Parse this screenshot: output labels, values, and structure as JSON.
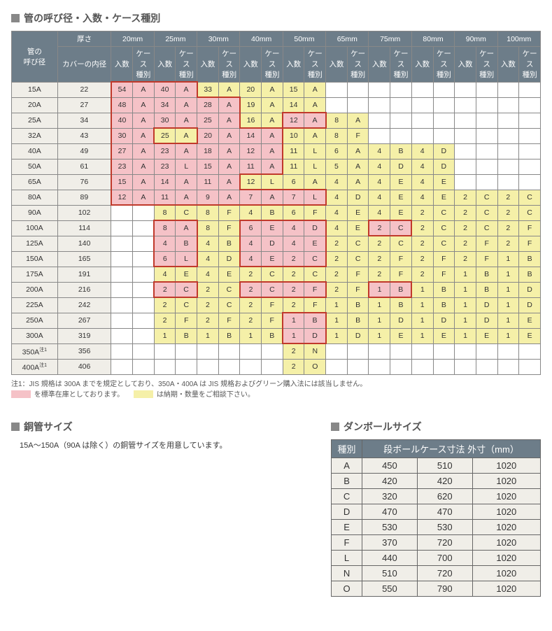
{
  "titles": {
    "main": "管の呼び径・入数・ケース種別",
    "copper": "銅管サイズ",
    "cardboard": "ダンボールサイズ"
  },
  "headers": {
    "pipe_size": "管の\n呼び径",
    "thickness": "厚さ",
    "cover_inner": "カバーの内径",
    "qty": "入数",
    "case_type": "ケース\n種別",
    "thickness_cols": [
      "20mm",
      "25mm",
      "30mm",
      "40mm",
      "50mm",
      "65mm",
      "75mm",
      "80mm",
      "90mm",
      "100mm"
    ]
  },
  "rows": [
    {
      "size": "15A",
      "inner": "22",
      "cells": [
        [
          "54",
          "A",
          "p"
        ],
        [
          "40",
          "A",
          "p"
        ],
        [
          "33",
          "A",
          "y"
        ],
        [
          "20",
          "A",
          "y"
        ],
        [
          "15",
          "A",
          "y"
        ],
        null,
        null,
        null,
        null,
        null
      ]
    },
    {
      "size": "20A",
      "inner": "27",
      "cells": [
        [
          "48",
          "A",
          "p"
        ],
        [
          "34",
          "A",
          "p"
        ],
        [
          "28",
          "A",
          "p"
        ],
        [
          "19",
          "A",
          "y"
        ],
        [
          "14",
          "A",
          "y"
        ],
        null,
        null,
        null,
        null,
        null
      ]
    },
    {
      "size": "25A",
      "inner": "34",
      "cells": [
        [
          "40",
          "A",
          "p"
        ],
        [
          "30",
          "A",
          "p"
        ],
        [
          "25",
          "A",
          "p"
        ],
        [
          "16",
          "A",
          "y"
        ],
        [
          "12",
          "A",
          "p"
        ],
        [
          "8",
          "A",
          "y"
        ],
        null,
        null,
        null,
        null
      ]
    },
    {
      "size": "32A",
      "inner": "43",
      "cells": [
        [
          "30",
          "A",
          "p"
        ],
        [
          "25",
          "A",
          "y"
        ],
        [
          "20",
          "A",
          "p"
        ],
        [
          "14",
          "A",
          "p"
        ],
        [
          "10",
          "A",
          "y"
        ],
        [
          "8",
          "F",
          "y"
        ],
        null,
        null,
        null,
        null
      ]
    },
    {
      "size": "40A",
      "inner": "49",
      "cells": [
        [
          "27",
          "A",
          "p"
        ],
        [
          "23",
          "A",
          "p"
        ],
        [
          "18",
          "A",
          "p"
        ],
        [
          "12",
          "A",
          "p"
        ],
        [
          "11",
          "L",
          "y"
        ],
        [
          "6",
          "A",
          "y"
        ],
        [
          "4",
          "B",
          "y"
        ],
        [
          "4",
          "D",
          "y"
        ],
        null,
        null
      ]
    },
    {
      "size": "50A",
      "inner": "61",
      "cells": [
        [
          "23",
          "A",
          "p"
        ],
        [
          "23",
          "L",
          "p"
        ],
        [
          "15",
          "A",
          "p"
        ],
        [
          "11",
          "A",
          "p"
        ],
        [
          "11",
          "L",
          "y"
        ],
        [
          "5",
          "A",
          "y"
        ],
        [
          "4",
          "D",
          "y"
        ],
        [
          "4",
          "D",
          "y"
        ],
        null,
        null
      ]
    },
    {
      "size": "65A",
      "inner": "76",
      "cells": [
        [
          "15",
          "A",
          "p"
        ],
        [
          "14",
          "A",
          "p"
        ],
        [
          "11",
          "A",
          "p"
        ],
        [
          "12",
          "L",
          "y"
        ],
        [
          "6",
          "A",
          "y"
        ],
        [
          "4",
          "A",
          "y"
        ],
        [
          "4",
          "E",
          "y"
        ],
        [
          "4",
          "E",
          "y"
        ],
        null,
        null
      ]
    },
    {
      "size": "80A",
      "inner": "89",
      "cells": [
        [
          "12",
          "A",
          "p"
        ],
        [
          "11",
          "A",
          "p"
        ],
        [
          "9",
          "A",
          "p"
        ],
        [
          "7",
          "A",
          "p"
        ],
        [
          "7",
          "L",
          "p"
        ],
        [
          "4",
          "D",
          "y"
        ],
        [
          "4",
          "E",
          "y"
        ],
        [
          "4",
          "E",
          "y"
        ],
        [
          "2",
          "C",
          "y"
        ],
        [
          "2",
          "C",
          "y"
        ]
      ]
    },
    {
      "size": "90A",
      "inner": "102",
      "cells": [
        null,
        [
          "8",
          "C",
          "y"
        ],
        [
          "8",
          "F",
          "y"
        ],
        [
          "4",
          "B",
          "y"
        ],
        [
          "6",
          "F",
          "y"
        ],
        [
          "4",
          "E",
          "y"
        ],
        [
          "4",
          "E",
          "y"
        ],
        [
          "2",
          "C",
          "y"
        ],
        [
          "2",
          "C",
          "y"
        ],
        [
          "2",
          "C",
          "y"
        ]
      ]
    },
    {
      "size": "100A",
      "inner": "114",
      "cells": [
        null,
        [
          "8",
          "A",
          "p"
        ],
        [
          "8",
          "F",
          "y"
        ],
        [
          "6",
          "E",
          "p"
        ],
        [
          "4",
          "D",
          "p"
        ],
        [
          "4",
          "E",
          "y"
        ],
        [
          "2",
          "C",
          "p"
        ],
        [
          "2",
          "C",
          "y"
        ],
        [
          "2",
          "C",
          "y"
        ],
        [
          "2",
          "F",
          "y"
        ]
      ]
    },
    {
      "size": "125A",
      "inner": "140",
      "cells": [
        null,
        [
          "4",
          "B",
          "p"
        ],
        [
          "4",
          "B",
          "y"
        ],
        [
          "4",
          "D",
          "p"
        ],
        [
          "4",
          "E",
          "p"
        ],
        [
          "2",
          "C",
          "y"
        ],
        [
          "2",
          "C",
          "y"
        ],
        [
          "2",
          "C",
          "y"
        ],
        [
          "2",
          "F",
          "y"
        ],
        [
          "2",
          "F",
          "y"
        ]
      ]
    },
    {
      "size": "150A",
      "inner": "165",
      "cells": [
        null,
        [
          "6",
          "L",
          "p"
        ],
        [
          "4",
          "D",
          "y"
        ],
        [
          "4",
          "E",
          "p"
        ],
        [
          "2",
          "C",
          "p"
        ],
        [
          "2",
          "C",
          "y"
        ],
        [
          "2",
          "F",
          "y"
        ],
        [
          "2",
          "F",
          "y"
        ],
        [
          "2",
          "F",
          "y"
        ],
        [
          "1",
          "B",
          "y"
        ]
      ]
    },
    {
      "size": "175A",
      "inner": "191",
      "cells": [
        null,
        [
          "4",
          "E",
          "y"
        ],
        [
          "4",
          "E",
          "y"
        ],
        [
          "2",
          "C",
          "y"
        ],
        [
          "2",
          "C",
          "y"
        ],
        [
          "2",
          "F",
          "y"
        ],
        [
          "2",
          "F",
          "y"
        ],
        [
          "2",
          "F",
          "y"
        ],
        [
          "1",
          "B",
          "y"
        ],
        [
          "1",
          "B",
          "y"
        ]
      ]
    },
    {
      "size": "200A",
      "inner": "216",
      "cells": [
        null,
        [
          "2",
          "C",
          "p"
        ],
        [
          "2",
          "C",
          "y"
        ],
        [
          "2",
          "C",
          "p"
        ],
        [
          "2",
          "F",
          "p"
        ],
        [
          "2",
          "F",
          "y"
        ],
        [
          "1",
          "B",
          "p"
        ],
        [
          "1",
          "B",
          "y"
        ],
        [
          "1",
          "B",
          "y"
        ],
        [
          "1",
          "D",
          "y"
        ]
      ]
    },
    {
      "size": "225A",
      "inner": "242",
      "cells": [
        null,
        [
          "2",
          "C",
          "y"
        ],
        [
          "2",
          "C",
          "y"
        ],
        [
          "2",
          "F",
          "y"
        ],
        [
          "2",
          "F",
          "y"
        ],
        [
          "1",
          "B",
          "y"
        ],
        [
          "1",
          "B",
          "y"
        ],
        [
          "1",
          "B",
          "y"
        ],
        [
          "1",
          "D",
          "y"
        ],
        [
          "1",
          "D",
          "y"
        ]
      ]
    },
    {
      "size": "250A",
      "inner": "267",
      "cells": [
        null,
        [
          "2",
          "F",
          "y"
        ],
        [
          "2",
          "F",
          "y"
        ],
        [
          "2",
          "F",
          "y"
        ],
        [
          "1",
          "B",
          "p"
        ],
        [
          "1",
          "B",
          "y"
        ],
        [
          "1",
          "D",
          "y"
        ],
        [
          "1",
          "D",
          "y"
        ],
        [
          "1",
          "D",
          "y"
        ],
        [
          "1",
          "E",
          "y"
        ]
      ]
    },
    {
      "size": "300A",
      "inner": "319",
      "cells": [
        null,
        [
          "1",
          "B",
          "y"
        ],
        [
          "1",
          "B",
          "y"
        ],
        [
          "1",
          "B",
          "y"
        ],
        [
          "1",
          "D",
          "p"
        ],
        [
          "1",
          "D",
          "y"
        ],
        [
          "1",
          "E",
          "y"
        ],
        [
          "1",
          "E",
          "y"
        ],
        [
          "1",
          "E",
          "y"
        ],
        [
          "1",
          "E",
          "y"
        ]
      ]
    },
    {
      "size": "350A",
      "note": "注1",
      "inner": "356",
      "cells": [
        null,
        null,
        null,
        null,
        [
          "2",
          "N",
          "y"
        ],
        null,
        null,
        null,
        null,
        null
      ]
    },
    {
      "size": "400A",
      "note": "注1",
      "inner": "406",
      "cells": [
        null,
        null,
        null,
        null,
        [
          "2",
          "O",
          "y"
        ],
        null,
        null,
        null,
        null,
        null
      ]
    }
  ],
  "footnotes": {
    "note1": "注1：JIS 規格は 300A までを規定としており、350A・400A は JIS 規格およびグリーン購入法には該当しません。",
    "pink_legend": "を標準在庫としております。",
    "yellow_legend": "は納期・数量をご相談下さい。"
  },
  "copper_text": "15A～150A（90A は除く）の銅管サイズを用意しています。",
  "cardboard": {
    "header_type": "種別",
    "header_dims": "段ボールケース寸法 外寸（mm）",
    "rows": [
      [
        "A",
        "450",
        "510",
        "1020"
      ],
      [
        "B",
        "420",
        "420",
        "1020"
      ],
      [
        "C",
        "320",
        "620",
        "1020"
      ],
      [
        "D",
        "470",
        "470",
        "1020"
      ],
      [
        "E",
        "530",
        "530",
        "1020"
      ],
      [
        "F",
        "370",
        "720",
        "1020"
      ],
      [
        "L",
        "440",
        "700",
        "1020"
      ],
      [
        "N",
        "510",
        "720",
        "1020"
      ],
      [
        "O",
        "550",
        "790",
        "1020"
      ]
    ]
  },
  "colors": {
    "header_bg": "#6d7d89",
    "header_fg": "#ffffff",
    "rowhdr_bg": "#f0eee8",
    "pink": "#f5c2c7",
    "yellow": "#f5f0a8",
    "border": "#888888",
    "red_outline": "#c0392b"
  }
}
